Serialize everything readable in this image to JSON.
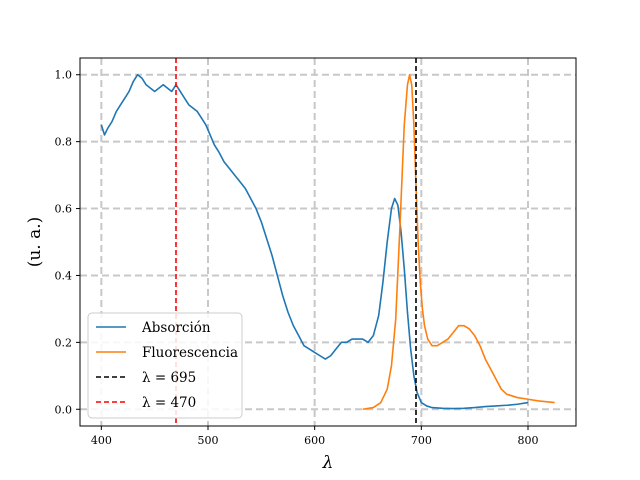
{
  "chart_data": {
    "type": "line",
    "title": "",
    "xlabel": "λ",
    "ylabel": "(u. a.)",
    "xlim": [
      380,
      845
    ],
    "ylim": [
      -0.05,
      1.05
    ],
    "xticks": [
      400,
      500,
      600,
      700,
      800
    ],
    "yticks": [
      0.0,
      0.2,
      0.4,
      0.6,
      0.8,
      1.0
    ],
    "xtick_labels": [
      "400",
      "500",
      "600",
      "700",
      "800"
    ],
    "ytick_labels": [
      "0.0",
      "0.2",
      "0.4",
      "0.6",
      "0.8",
      "1.0"
    ],
    "grid": true,
    "grid_style": "dashed",
    "legend_position": "lower-left",
    "series": [
      {
        "name": "Absorción",
        "color": "#1f77b4",
        "style": "solid",
        "x": [
          400,
          403,
          406,
          410,
          414,
          418,
          422,
          426,
          430,
          434,
          438,
          442,
          446,
          450,
          454,
          458,
          462,
          466,
          470,
          474,
          478,
          482,
          486,
          490,
          494,
          498,
          502,
          506,
          510,
          515,
          520,
          525,
          530,
          535,
          540,
          545,
          550,
          555,
          560,
          565,
          570,
          575,
          580,
          585,
          590,
          595,
          600,
          605,
          610,
          615,
          620,
          625,
          630,
          635,
          640,
          645,
          650,
          655,
          660,
          664,
          668,
          672,
          675,
          678,
          681,
          684,
          687,
          690,
          693,
          696,
          700,
          705,
          710,
          720,
          730,
          740,
          750,
          760,
          770,
          780,
          790,
          800
        ],
        "y": [
          0.85,
          0.82,
          0.84,
          0.86,
          0.89,
          0.91,
          0.93,
          0.95,
          0.98,
          1.0,
          0.99,
          0.97,
          0.96,
          0.95,
          0.96,
          0.97,
          0.96,
          0.95,
          0.97,
          0.95,
          0.93,
          0.91,
          0.9,
          0.89,
          0.87,
          0.85,
          0.82,
          0.79,
          0.77,
          0.74,
          0.72,
          0.7,
          0.68,
          0.66,
          0.63,
          0.6,
          0.56,
          0.51,
          0.46,
          0.4,
          0.34,
          0.29,
          0.25,
          0.22,
          0.19,
          0.18,
          0.17,
          0.16,
          0.15,
          0.16,
          0.18,
          0.2,
          0.2,
          0.21,
          0.21,
          0.21,
          0.2,
          0.22,
          0.28,
          0.38,
          0.5,
          0.6,
          0.63,
          0.61,
          0.53,
          0.42,
          0.29,
          0.18,
          0.1,
          0.05,
          0.02,
          0.01,
          0.005,
          0.003,
          0.002,
          0.003,
          0.005,
          0.008,
          0.01,
          0.012,
          0.015,
          0.02
        ]
      },
      {
        "name": "Fluorescencia",
        "color": "#ff7f0e",
        "style": "solid",
        "x": [
          645,
          655,
          662,
          668,
          672,
          676,
          680,
          684,
          687,
          689,
          691,
          693,
          695,
          697,
          699,
          701,
          703,
          706,
          710,
          715,
          720,
          725,
          730,
          735,
          740,
          745,
          750,
          755,
          760,
          765,
          770,
          775,
          780,
          790,
          800,
          810,
          825
        ],
        "y": [
          0.0,
          0.005,
          0.02,
          0.06,
          0.13,
          0.27,
          0.55,
          0.85,
          0.97,
          1.0,
          0.97,
          0.85,
          0.67,
          0.5,
          0.38,
          0.3,
          0.25,
          0.21,
          0.19,
          0.19,
          0.2,
          0.21,
          0.23,
          0.25,
          0.25,
          0.24,
          0.22,
          0.19,
          0.15,
          0.12,
          0.09,
          0.06,
          0.045,
          0.035,
          0.03,
          0.025,
          0.02
        ]
      },
      {
        "name": "λ = 695",
        "color": "#000000",
        "style": "dashed",
        "vline": 695
      },
      {
        "name": "λ = 470",
        "color": "#ff0000",
        "style": "dashed",
        "vline": 470
      }
    ]
  }
}
